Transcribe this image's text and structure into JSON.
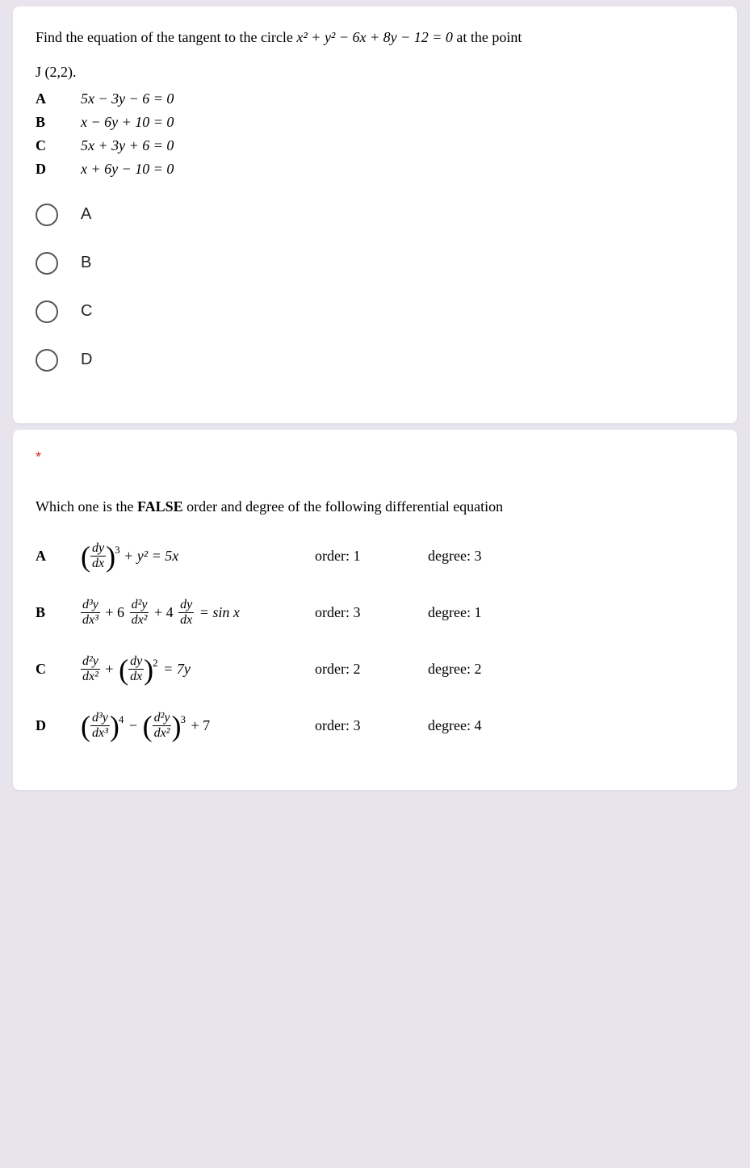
{
  "q1": {
    "prompt_pre": "Find the equation of the tangent to the circle ",
    "circle_eq": "x² + y² − 6x + 8y − 12 = 0",
    "prompt_post": " at the point",
    "point_line": "J (2,2).",
    "answers": [
      {
        "letter": "A",
        "eq": "5x − 3y − 6 = 0"
      },
      {
        "letter": "B",
        "eq": "x − 6y + 10 = 0"
      },
      {
        "letter": "C",
        "eq": "5x + 3y + 6 = 0"
      },
      {
        "letter": "D",
        "eq": "x + 6y − 10 = 0"
      }
    ],
    "radios": [
      "A",
      "B",
      "C",
      "D"
    ]
  },
  "q2": {
    "required_marker": "*",
    "prompt_pre": "Which one is the ",
    "prompt_bold": "FALSE",
    "prompt_post": " order and degree of the following differential equation",
    "rows": [
      {
        "letter": "A",
        "order": "order: 1",
        "degree": "degree: 3"
      },
      {
        "letter": "B",
        "order": "order: 3",
        "degree": "degree: 1"
      },
      {
        "letter": "C",
        "order": "order: 2",
        "degree": "degree: 2"
      },
      {
        "letter": "D",
        "order": "order: 3",
        "degree": "degree: 4"
      }
    ]
  },
  "colors": {
    "page_bg": "#e8e4ee",
    "card_bg": "#ffffff",
    "text": "#000000",
    "required": "#d63020",
    "radio_border": "#555555"
  },
  "typography": {
    "body_font": "Times New Roman",
    "body_size_pt": 14,
    "radio_font": "Arial",
    "radio_size_pt": 15
  }
}
